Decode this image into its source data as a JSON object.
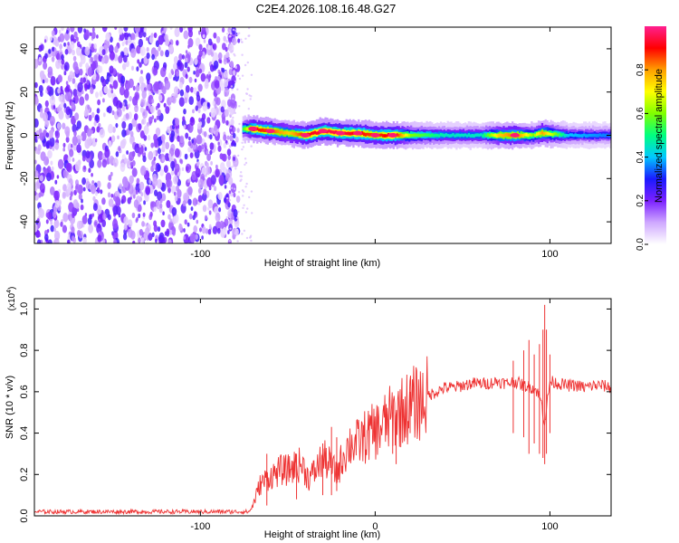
{
  "title": "C2E4.2026.108.16.48.G27",
  "chart_data": [
    {
      "type": "heatmap",
      "xlabel": "Height of straight line (km)",
      "ylabel": "Frequency (Hz)",
      "xlim": [
        -195,
        135
      ],
      "ylim": [
        -50,
        50
      ],
      "x_ticks": [
        -100,
        0,
        100
      ],
      "x_tick_labels": [
        "-100",
        "",
        "100"
      ],
      "y_ticks": [
        -40,
        -20,
        0,
        20,
        40
      ],
      "y_tick_labels": [
        "-40",
        "-20",
        "0",
        "20",
        "40"
      ],
      "noise_region": {
        "x_range": [
          -195,
          -78
        ],
        "y_range": [
          -50,
          50
        ]
      },
      "signal_band": {
        "description_points": [
          {
            "x": -76,
            "freq": 3,
            "amp": 0.55
          },
          {
            "x": -70,
            "freq": 3,
            "amp": 0.9
          },
          {
            "x": -60,
            "freq": 2,
            "amp": 0.85
          },
          {
            "x": -50,
            "freq": 1,
            "amp": 0.75
          },
          {
            "x": -40,
            "freq": 0,
            "amp": 0.9
          },
          {
            "x": -30,
            "freq": 2,
            "amp": 0.95
          },
          {
            "x": -20,
            "freq": 1,
            "amp": 0.95
          },
          {
            "x": -10,
            "freq": 1,
            "amp": 0.9
          },
          {
            "x": 0,
            "freq": 0,
            "amp": 0.85
          },
          {
            "x": 10,
            "freq": 0,
            "amp": 0.95
          },
          {
            "x": 20,
            "freq": 0,
            "amp": 0.6
          },
          {
            "x": 40,
            "freq": 0,
            "amp": 0.45
          },
          {
            "x": 60,
            "freq": 0,
            "amp": 0.45
          },
          {
            "x": 70,
            "freq": 0,
            "amp": 0.75
          },
          {
            "x": 80,
            "freq": 0,
            "amp": 0.85
          },
          {
            "x": 90,
            "freq": 0,
            "amp": 0.6
          },
          {
            "x": 95,
            "freq": 1,
            "amp": 0.8
          },
          {
            "x": 110,
            "freq": 0,
            "amp": 0.4
          },
          {
            "x": 135,
            "freq": 0,
            "amp": 0.35
          }
        ]
      },
      "colorbar": {
        "label": "Normalized spectral amplitude",
        "range": [
          0,
          1
        ],
        "ticks": [
          0,
          0.2,
          0.4,
          0.6,
          0.8
        ],
        "tick_labels": [
          "0.0",
          "0.2",
          "0.4",
          "0.6",
          "0.8"
        ],
        "colors": [
          "#ffffff",
          "#cfa8ff",
          "#7b20ff",
          "#1a1aff",
          "#00c8ff",
          "#00ff80",
          "#80ff00",
          "#ffff00",
          "#ffa000",
          "#ff0000",
          "#ff2090"
        ]
      }
    },
    {
      "type": "line",
      "xlabel": "Height of straight line (km)",
      "ylabel": "SNR (10 * v/v)",
      "y_scale_label": "(x10",
      "y_scale_exp": "4",
      "y_scale_close": ")",
      "xlim": [
        -195,
        135
      ],
      "ylim": [
        0,
        1.05
      ],
      "x_ticks": [
        -100,
        0,
        100
      ],
      "x_tick_labels": [
        "-100",
        "0",
        "100"
      ],
      "y_ticks": [
        0,
        0.2,
        0.4,
        0.6,
        0.8,
        1.0
      ],
      "y_tick_labels": [
        "0.0",
        "0.2",
        "0.4",
        "0.6",
        "0.8",
        "1.0"
      ],
      "line_color": "#ee3333",
      "series": [
        {
          "x": [
            -195,
            -170,
            -150,
            -130,
            -110,
            -90,
            -80,
            -72,
            -70,
            -66,
            -62,
            -58,
            -54,
            -50,
            -46,
            -42,
            -38,
            -34,
            -30,
            -26,
            -22,
            -18,
            -14,
            -10,
            -6,
            -2,
            2,
            6,
            10,
            14,
            18,
            22,
            26,
            30,
            35,
            40,
            45,
            50,
            55,
            60,
            65,
            70,
            75,
            80,
            85,
            90,
            93,
            95,
            97,
            100,
            105,
            110,
            115,
            120,
            125,
            130,
            135
          ],
          "values": [
            0.02,
            0.02,
            0.02,
            0.02,
            0.02,
            0.02,
            0.02,
            0.02,
            0.05,
            0.15,
            0.18,
            0.2,
            0.22,
            0.22,
            0.24,
            0.25,
            0.18,
            0.22,
            0.28,
            0.25,
            0.2,
            0.3,
            0.35,
            0.35,
            0.38,
            0.4,
            0.42,
            0.45,
            0.48,
            0.5,
            0.52,
            0.54,
            0.55,
            0.58,
            0.6,
            0.62,
            0.62,
            0.63,
            0.64,
            0.64,
            0.64,
            0.65,
            0.64,
            0.65,
            0.63,
            0.62,
            0.6,
            0.55,
            0.45,
            0.65,
            0.64,
            0.63,
            0.63,
            0.62,
            0.63,
            0.63,
            0.62
          ],
          "spikes": [
            {
              "x": 79,
              "lo": 0.4,
              "hi": 0.75
            },
            {
              "x": 85,
              "lo": 0.38,
              "hi": 0.8
            },
            {
              "x": 88,
              "lo": 0.3,
              "hi": 0.85
            },
            {
              "x": 91,
              "lo": 0.35,
              "hi": 0.78
            },
            {
              "x": 94,
              "lo": 0.3,
              "hi": 0.83
            },
            {
              "x": 96,
              "lo": 0.28,
              "hi": 0.9
            },
            {
              "x": 97,
              "lo": 0.25,
              "hi": 1.02
            },
            {
              "x": 98,
              "lo": 0.3,
              "hi": 0.9
            },
            {
              "x": 100,
              "lo": 0.4,
              "hi": 0.78
            },
            {
              "x": -62,
              "lo": 0.05,
              "hi": 0.3
            },
            {
              "x": -45,
              "lo": 0.08,
              "hi": 0.3
            },
            {
              "x": -30,
              "lo": 0.1,
              "hi": 0.35
            },
            {
              "x": -25,
              "lo": 0.1,
              "hi": 0.43
            },
            {
              "x": -22,
              "lo": 0.12,
              "hi": 0.38
            },
            {
              "x": 10,
              "lo": 0.3,
              "hi": 0.5
            },
            {
              "x": 12,
              "lo": 0.25,
              "hi": 0.48
            },
            {
              "x": 20,
              "lo": 0.4,
              "hi": 0.6
            }
          ]
        }
      ]
    }
  ]
}
